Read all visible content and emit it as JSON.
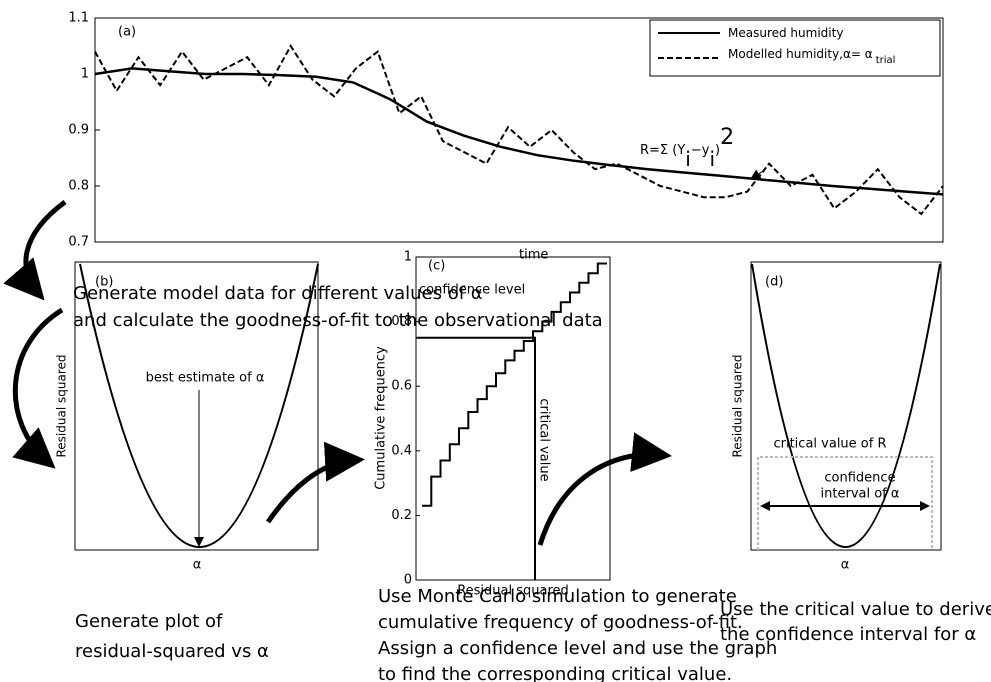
{
  "chart_data": [
    {
      "type": "line",
      "label": "(a)",
      "x_label": "time",
      "ylim": [
        0.7,
        1.1
      ],
      "yticks": [
        0.7,
        0.8,
        0.9,
        1,
        1.1
      ],
      "series": [
        {
          "name": "Measured humidity",
          "color": "#000000",
          "dash": false,
          "values": [
            1.0,
            1.01,
            1.005,
            1.0,
            1.0,
            0.998,
            0.995,
            0.985,
            0.955,
            0.915,
            0.89,
            0.87,
            0.855,
            0.845,
            0.837,
            0.83,
            0.824,
            0.818,
            0.812,
            0.806,
            0.8,
            0.795,
            0.79,
            0.785
          ]
        },
        {
          "name": "Modelled humidity,α= α",
          "name_subscript": "trial",
          "color": "#000000",
          "dash": true,
          "values": [
            1.04,
            0.97,
            1.03,
            0.98,
            1.04,
            0.99,
            1.01,
            1.03,
            0.98,
            1.05,
            0.99,
            0.96,
            1.01,
            1.04,
            0.93,
            0.96,
            0.88,
            0.86,
            0.84,
            0.905,
            0.87,
            0.9,
            0.86,
            0.83,
            0.84,
            0.82,
            0.8,
            0.79,
            0.78,
            0.78,
            0.79,
            0.84,
            0.8,
            0.82,
            0.76,
            0.79,
            0.83,
            0.78,
            0.75,
            0.8
          ]
        }
      ],
      "formula": [
        "R=Σ (Y",
        "i",
        "−y",
        "i",
        ")",
        "2"
      ]
    },
    {
      "type": "step",
      "label": "(c)",
      "x_label": "Residual squared",
      "y_label": "Cumulative frequency",
      "ylim": [
        0,
        1
      ],
      "yticks": [
        0,
        0.2,
        0.4,
        0.6,
        0.8,
        1
      ],
      "values": [
        0.23,
        0.32,
        0.37,
        0.42,
        0.47,
        0.52,
        0.56,
        0.6,
        0.64,
        0.68,
        0.71,
        0.74,
        0.77,
        0.8,
        0.83,
        0.86,
        0.89,
        0.92,
        0.95,
        0.98
      ],
      "confidence_level": 0.75,
      "confidence_label": "confidence level",
      "critical_label": "critical value"
    }
  ],
  "diagram": {
    "step_1": [
      "Generate model data for different values of α",
      "and calculate the goodness-of-fit to the observational data"
    ],
    "panel_b": {
      "label": "(b)",
      "y_label": "Residual squared",
      "x_label": "α",
      "annotation": "best estimate of α",
      "caption": [
        "Generate plot of",
        "residual-squared vs α"
      ]
    },
    "panel_c_caption": [
      "Use Monte Carlo simulation to generate",
      "cumulative frequency of goodness-of-fit.",
      "Assign a confidence level and use the graph",
      "to find the corresponding critical value."
    ],
    "panel_d": {
      "label": "(d)",
      "y_label": "Residual squared",
      "x_label": "α",
      "critical": "critical value of R",
      "interval": [
        "confidence",
        "interval of α"
      ],
      "caption": [
        "Use the critical value to derive",
        "the confidence interval for α"
      ]
    }
  }
}
